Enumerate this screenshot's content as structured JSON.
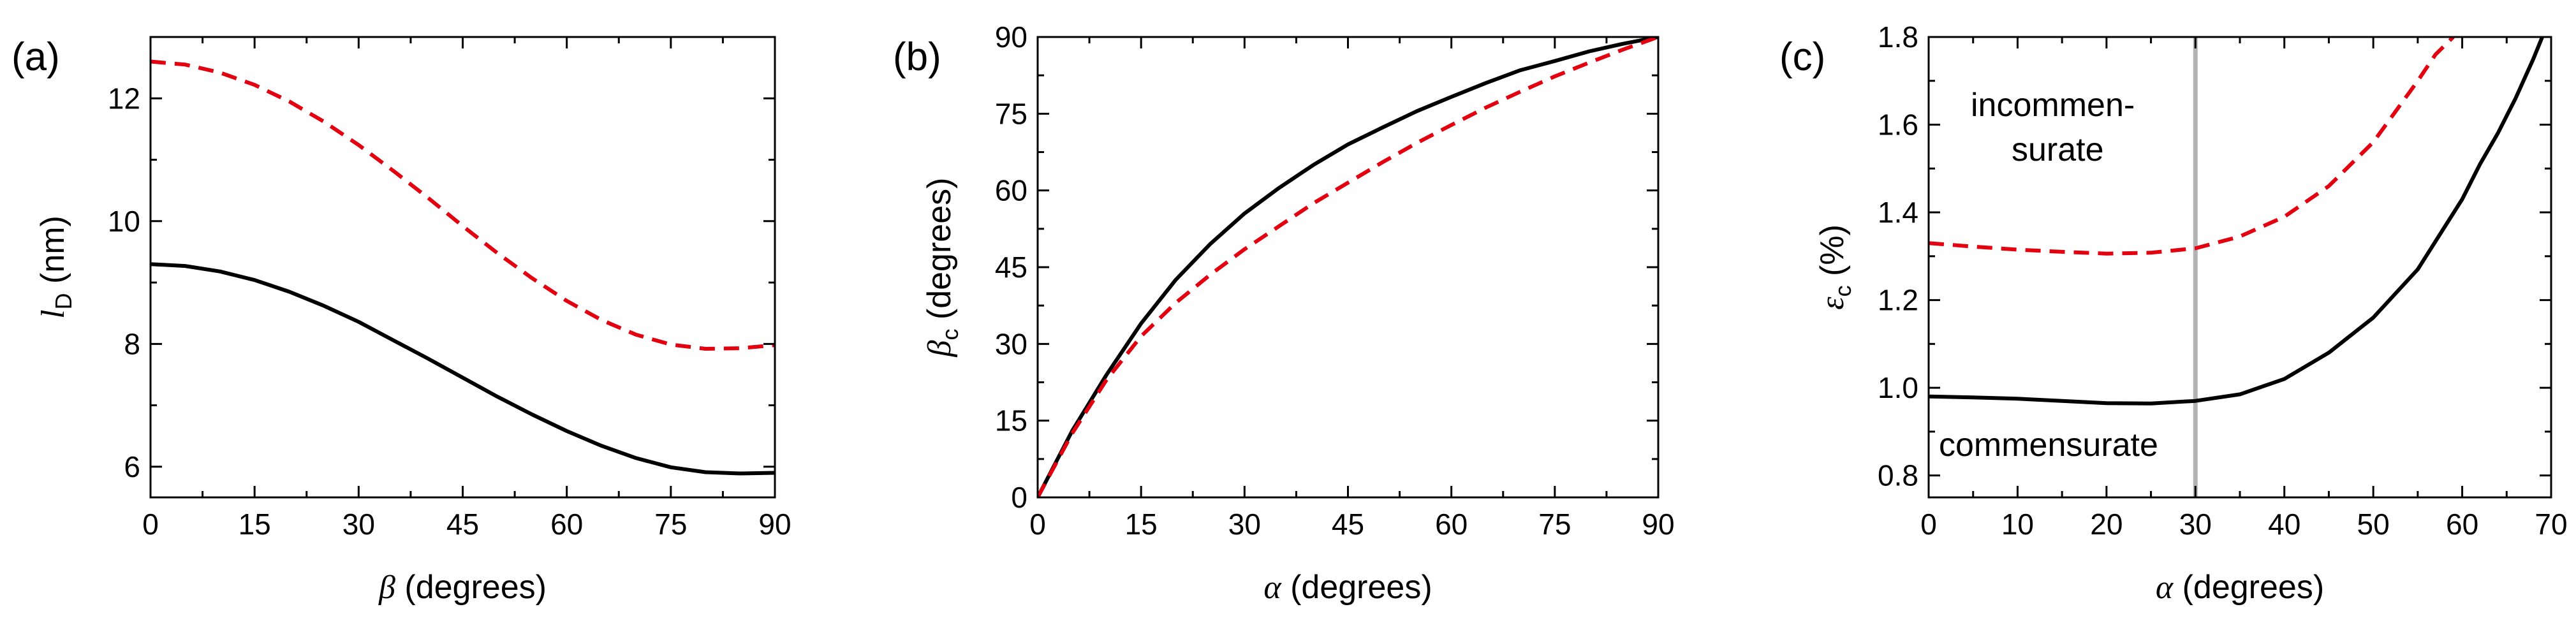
{
  "chart_data": [
    {
      "panel_label": "(a)",
      "type": "line",
      "xlabel": {
        "symbol": "β",
        "text": " (degrees)"
      },
      "ylabel": {
        "symbol": "l",
        "subscript": "D",
        "text": " (nm)"
      },
      "xlim": [
        0,
        90
      ],
      "ylim": [
        5.5,
        13.0
      ],
      "xticks": [
        0,
        15,
        30,
        45,
        60,
        75,
        90
      ],
      "yticks": [
        6,
        8,
        10,
        12
      ],
      "grid": false,
      "series": [
        {
          "color": "#000000",
          "style": "solid",
          "x": [
            0,
            5,
            10,
            15,
            20,
            25,
            30,
            35,
            40,
            45,
            50,
            55,
            60,
            65,
            70,
            75,
            80,
            85,
            90
          ],
          "y": [
            9.3,
            9.27,
            9.18,
            9.04,
            8.85,
            8.62,
            8.36,
            8.06,
            7.76,
            7.45,
            7.14,
            6.85,
            6.58,
            6.34,
            6.14,
            5.99,
            5.91,
            5.89,
            5.9
          ]
        },
        {
          "color": "#e3000f",
          "style": "dashed",
          "x": [
            0,
            5,
            10,
            15,
            20,
            25,
            30,
            35,
            40,
            45,
            50,
            55,
            60,
            65,
            70,
            75,
            80,
            85,
            90
          ],
          "y": [
            12.6,
            12.55,
            12.42,
            12.22,
            11.95,
            11.62,
            11.24,
            10.82,
            10.38,
            9.92,
            9.48,
            9.07,
            8.7,
            8.39,
            8.15,
            7.99,
            7.92,
            7.93,
            7.98
          ]
        }
      ]
    },
    {
      "panel_label": "(b)",
      "type": "line",
      "xlabel": {
        "symbol": "α",
        "text": " (degrees)"
      },
      "ylabel": {
        "symbol": "β",
        "subscript": "c",
        "text": " (degrees)"
      },
      "xlim": [
        0,
        90
      ],
      "ylim": [
        0,
        90
      ],
      "xticks": [
        0,
        15,
        30,
        45,
        60,
        75,
        90
      ],
      "yticks": [
        0,
        15,
        30,
        45,
        60,
        75,
        90
      ],
      "grid": false,
      "series": [
        {
          "color": "#000000",
          "style": "solid",
          "x": [
            0,
            5,
            10,
            15,
            20,
            25,
            30,
            35,
            40,
            45,
            50,
            55,
            60,
            65,
            70,
            75,
            80,
            85,
            90
          ],
          "y": [
            0,
            13,
            24,
            34,
            42.5,
            49.5,
            55.5,
            60.5,
            65,
            69,
            72.3,
            75.5,
            78.3,
            81,
            83.5,
            85.3,
            87.2,
            88.7,
            90
          ]
        },
        {
          "color": "#e3000f",
          "style": "dashed",
          "x": [
            0,
            5,
            10,
            15,
            20,
            25,
            30,
            35,
            40,
            45,
            50,
            55,
            60,
            65,
            70,
            75,
            80,
            85,
            90
          ],
          "y": [
            0,
            12.5,
            23,
            31.5,
            38,
            43.5,
            48.5,
            53,
            57.5,
            61.5,
            65.5,
            69.3,
            72.8,
            76.2,
            79.3,
            82.3,
            85,
            87.6,
            90
          ]
        }
      ]
    },
    {
      "panel_label": "(c)",
      "type": "line",
      "xlabel": {
        "symbol": "α",
        "text": " (degrees)"
      },
      "ylabel": {
        "symbol": "ε",
        "subscript": "c",
        "text": " (%)"
      },
      "xlim": [
        0,
        70
      ],
      "ylim": [
        0.75,
        1.8
      ],
      "xticks": [
        0,
        10,
        20,
        30,
        40,
        50,
        60,
        70
      ],
      "yticks": [
        0.8,
        1.0,
        1.2,
        1.4,
        1.6,
        1.8
      ],
      "grid": false,
      "vline": {
        "x": 30,
        "color": "#b3b3b3"
      },
      "annotations": [
        {
          "lines": [
            "incommen-",
            "surate"
          ]
        },
        {
          "lines": [
            "commensurate"
          ]
        }
      ],
      "series": [
        {
          "color": "#000000",
          "style": "solid",
          "x": [
            0,
            5,
            10,
            15,
            20,
            25,
            30,
            35,
            40,
            45,
            50,
            55,
            60,
            62,
            64,
            66,
            68,
            69
          ],
          "y": [
            0.98,
            0.978,
            0.975,
            0.97,
            0.965,
            0.964,
            0.97,
            0.985,
            1.02,
            1.08,
            1.16,
            1.27,
            1.43,
            1.51,
            1.58,
            1.66,
            1.75,
            1.8
          ]
        },
        {
          "color": "#e3000f",
          "style": "dashed",
          "x": [
            0,
            5,
            10,
            15,
            20,
            25,
            30,
            35,
            40,
            45,
            50,
            55,
            57,
            59
          ],
          "y": [
            1.33,
            1.322,
            1.315,
            1.31,
            1.306,
            1.308,
            1.318,
            1.345,
            1.39,
            1.46,
            1.56,
            1.7,
            1.76,
            1.8
          ]
        }
      ]
    }
  ]
}
